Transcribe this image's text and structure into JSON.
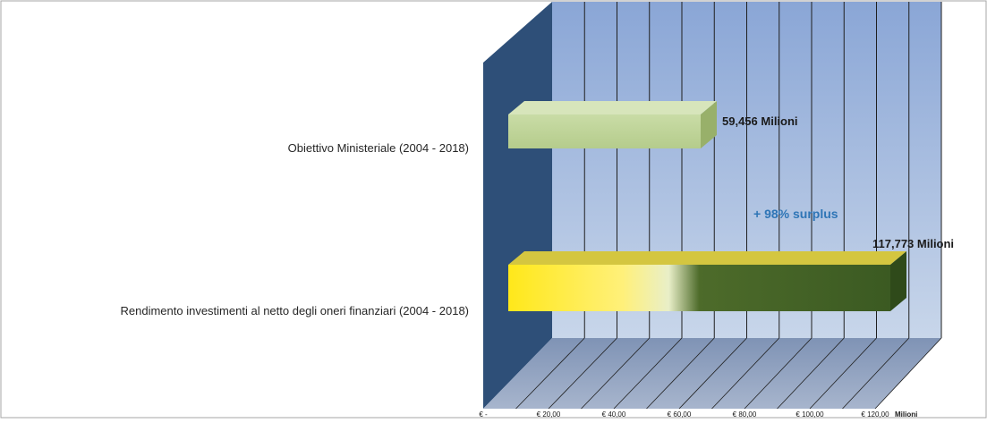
{
  "chart_data": {
    "type": "bar",
    "orientation": "horizontal",
    "categories": [
      "Obiettivo Ministeriale (2004 - 2018)",
      "Rendimento investimenti al netto degli oneri  finanziari (2004 - 2018)"
    ],
    "values": [
      59.456,
      117.773
    ],
    "data_labels": [
      "59,456 Milioni",
      "117,773  Milioni"
    ],
    "annotation": "+ 98% surplus",
    "x_ticks": [
      "€ -",
      "€ 20,00",
      "€ 40,00",
      "€ 60,00",
      "€ 80,00",
      "€ 100,00",
      "€ 120,00"
    ],
    "x_tick_values": [
      0,
      20,
      40,
      60,
      80,
      100,
      120
    ],
    "x_unit": "Milioni",
    "xlim": [
      0,
      120
    ],
    "grid": true,
    "legend": "none",
    "colors": {
      "wall": "#9db3d6",
      "side_wall": "#2e4f78",
      "floor": "#8e9fbe",
      "bar1": "#c2d69b",
      "bar2_front": "#ffe81a",
      "bar2_dark": "#3b5a22",
      "annotation": "#2e75b6"
    }
  }
}
